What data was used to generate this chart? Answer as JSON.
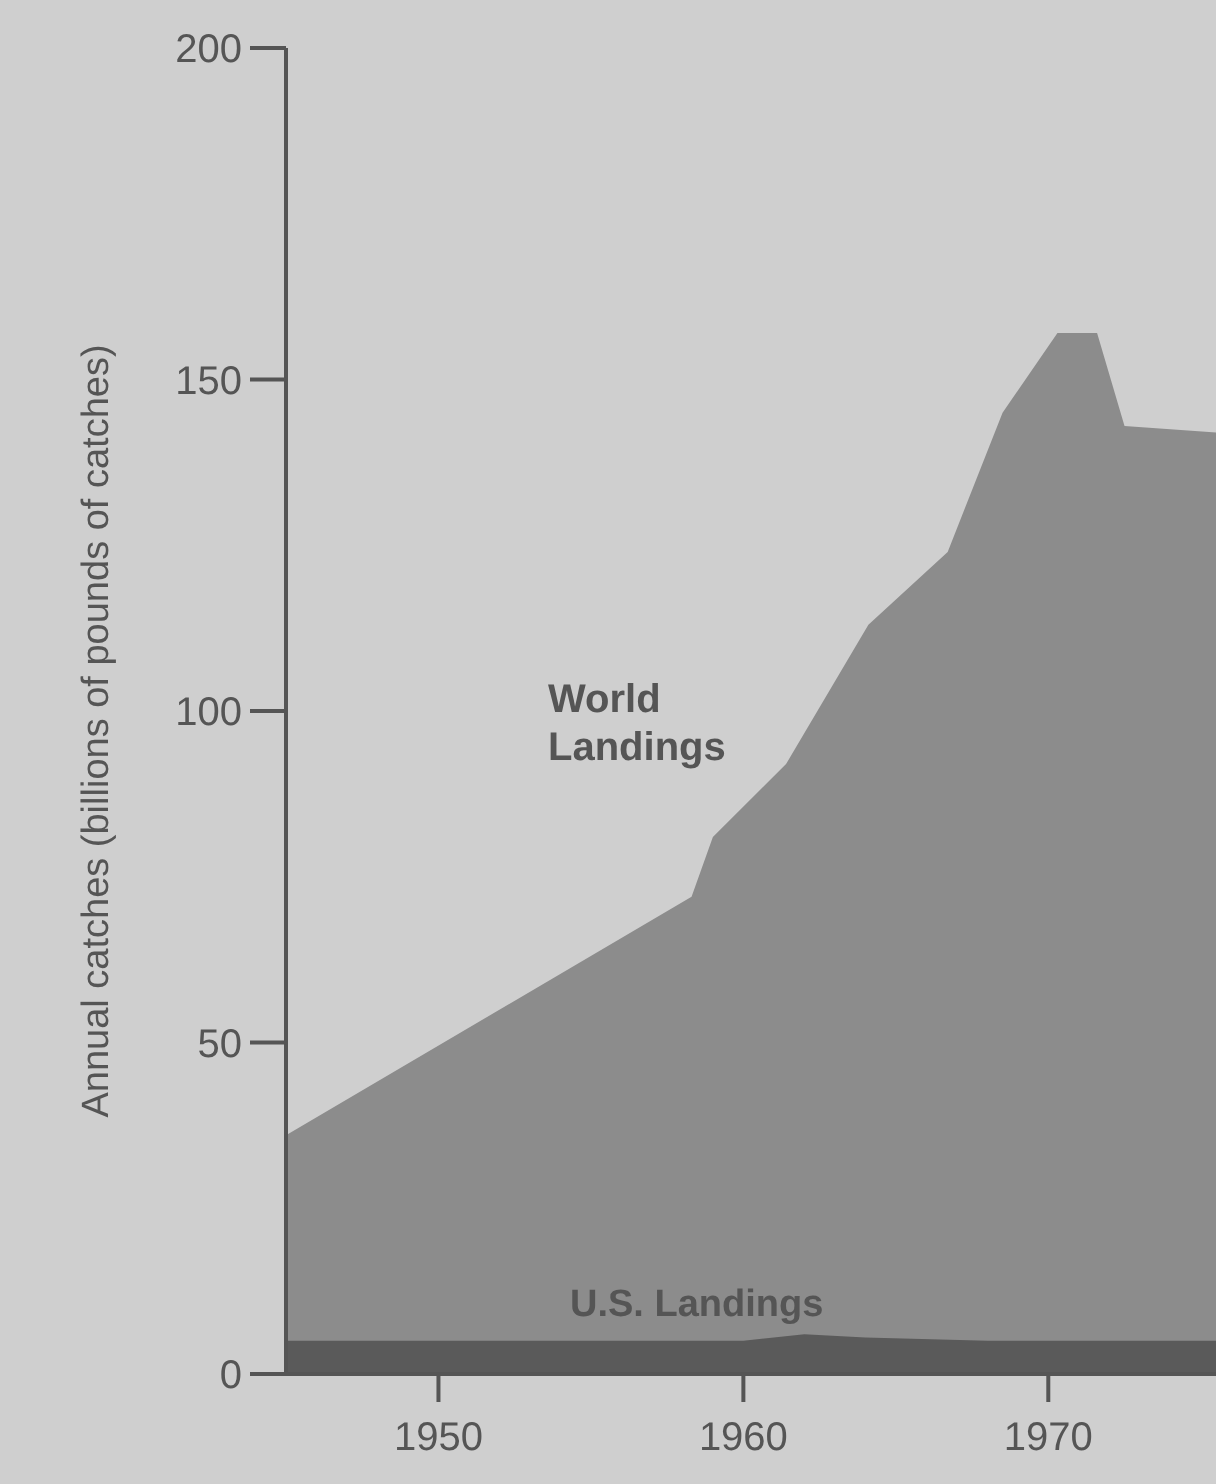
{
  "chart_data": {
    "type": "area",
    "ylabel": "Annual catches (billions of pounds of  catches)",
    "xlim": [
      1945,
      1975.5
    ],
    "xticks": [
      1950,
      1960,
      1970
    ],
    "ylim": [
      0,
      200
    ],
    "yticks": [
      0,
      50,
      100,
      150,
      200
    ],
    "series": [
      {
        "name": "World Landings",
        "color": "#8c8c8c",
        "x": [
          1945,
          1958.3,
          1959,
          1961.4,
          1964.1,
          1966.7,
          1968.5,
          1970.3,
          1971.6,
          1972.5,
          1975.5
        ],
        "values": [
          36,
          72,
          81,
          92,
          113,
          124,
          145,
          157,
          157,
          143,
          142
        ]
      },
      {
        "name": "U.S. Landings",
        "color": "#5a5a5a",
        "x": [
          1945,
          1955,
          1960,
          1962,
          1964,
          1968,
          1975.5
        ],
        "values": [
          5,
          5,
          5,
          6,
          5.5,
          5,
          5
        ]
      }
    ]
  }
}
